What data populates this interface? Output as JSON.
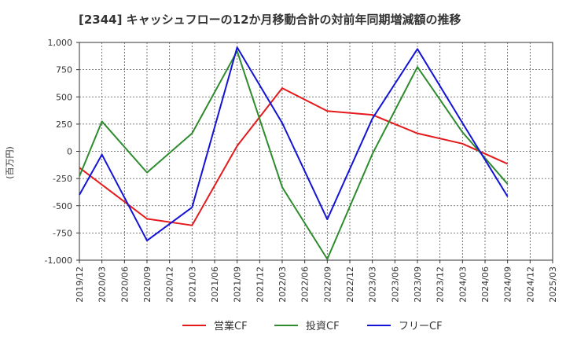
{
  "chart_data": {
    "type": "line",
    "title": "[2344]  キャッシュフローの12か月移動合計の対前年同期増減額の推移",
    "ylabel": "(百万円)",
    "xlabel": "",
    "ylim": [
      -1000,
      1000
    ],
    "yticks": [
      1000,
      750,
      500,
      250,
      0,
      -250,
      -500,
      -750,
      -1000
    ],
    "ytick_labels": [
      "1,000",
      "750",
      "500",
      "250",
      "0",
      "-250",
      "-500",
      "-750",
      "-1,000"
    ],
    "x": [
      "2019/12",
      "2020/03",
      "2020/06",
      "2020/09",
      "2020/12",
      "2021/03",
      "2021/06",
      "2021/09",
      "2021/12",
      "2022/03",
      "2022/06",
      "2022/09",
      "2022/12",
      "2023/03",
      "2023/06",
      "2023/09",
      "2023/12",
      "2024/03",
      "2024/06",
      "2024/09",
      "2024/12",
      "2025/03"
    ],
    "grid": true,
    "legend_position": "bottom",
    "series": [
      {
        "name": "営業CF",
        "color": "#e41a1c",
        "values": [
          -150,
          null,
          null,
          -620,
          null,
          -680,
          null,
          50,
          null,
          580,
          null,
          370,
          null,
          335,
          null,
          165,
          null,
          70,
          null,
          -115,
          null,
          null
        ]
      },
      {
        "name": "投資CF",
        "color": "#2e8b2e",
        "values": [
          -230,
          275,
          null,
          -195,
          null,
          165,
          null,
          920,
          null,
          -330,
          null,
          -990,
          null,
          -25,
          null,
          775,
          null,
          175,
          null,
          -300,
          null,
          null
        ]
      },
      {
        "name": "フリーCF",
        "color": "#1414d6",
        "values": [
          -400,
          -30,
          null,
          -820,
          null,
          -515,
          null,
          955,
          null,
          260,
          null,
          -625,
          null,
          300,
          null,
          940,
          null,
          260,
          null,
          -415,
          null,
          null
        ]
      }
    ]
  }
}
